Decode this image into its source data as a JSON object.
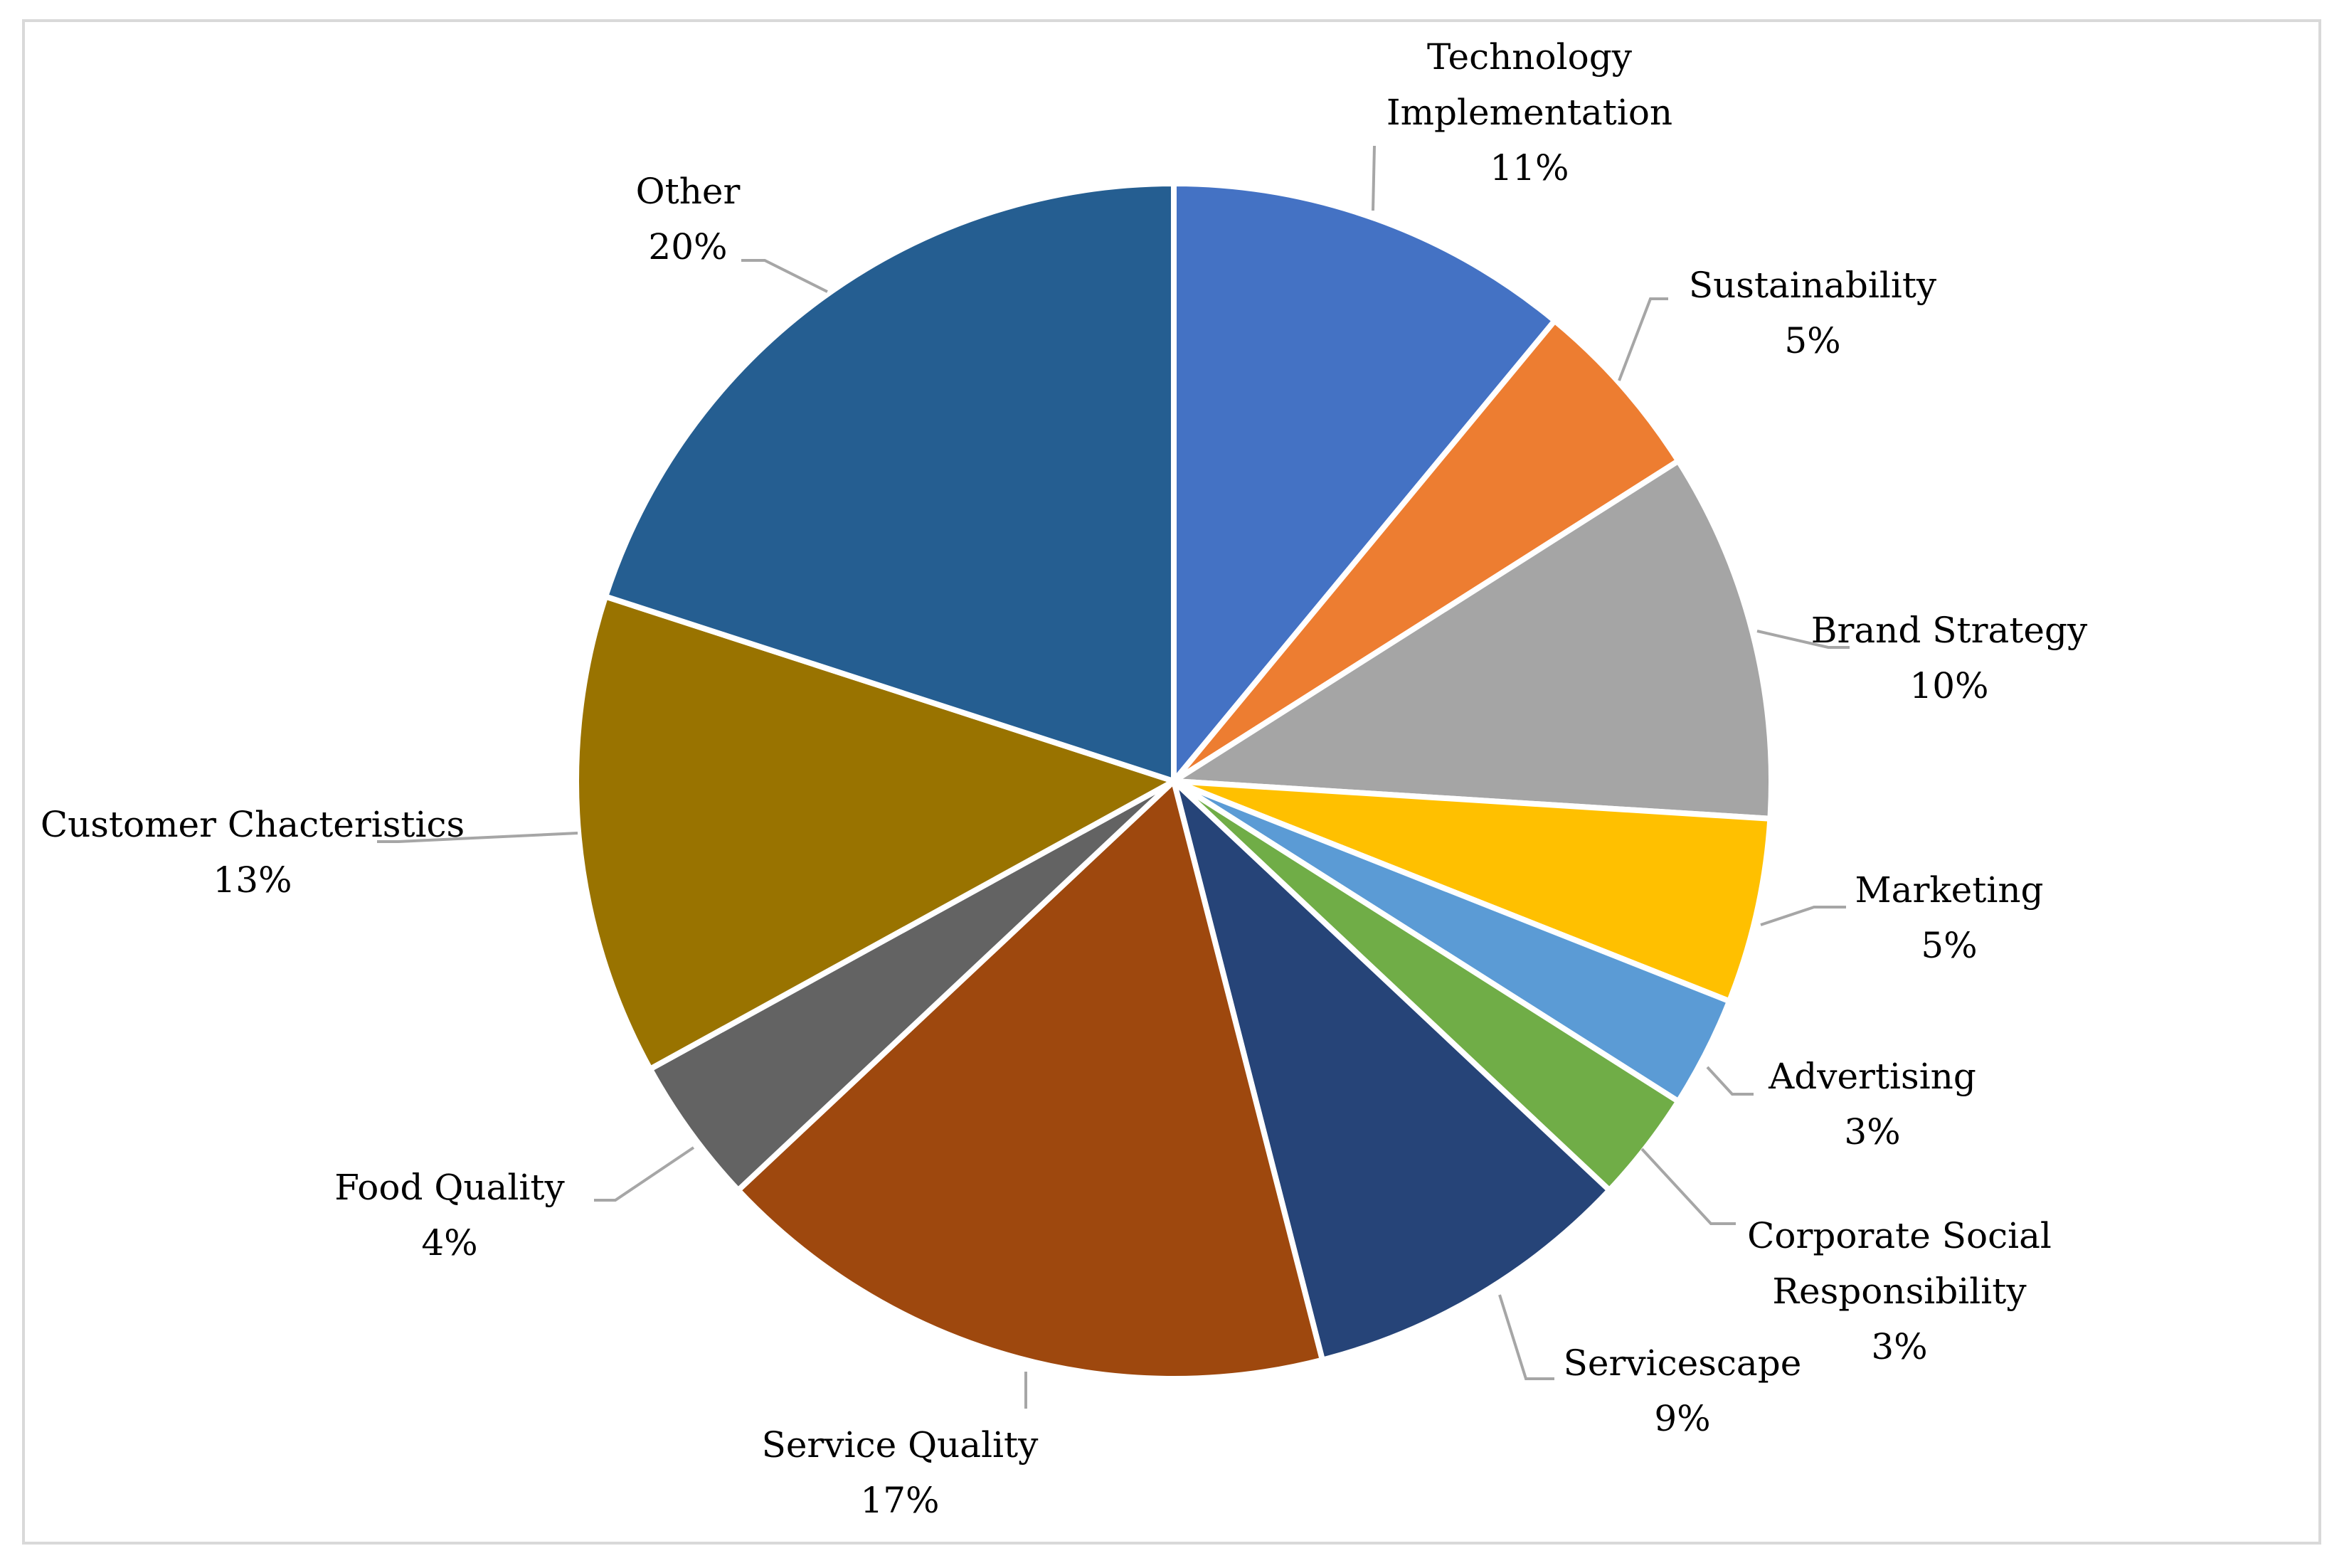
{
  "chart_data": {
    "type": "pie",
    "title": "",
    "start_angle_deg": 0,
    "direction": "clockwise",
    "slices": [
      {
        "name": "Technology Implementation",
        "label_lines": [
          "Technology",
          "Implementation"
        ],
        "value": 11,
        "pct_label": "11%",
        "color": "#4472C4"
      },
      {
        "name": "Sustainability",
        "label_lines": [
          "Sustainability"
        ],
        "value": 5,
        "pct_label": "5%",
        "color": "#ED7D31"
      },
      {
        "name": "Brand Strategy",
        "label_lines": [
          "Brand Strategy"
        ],
        "value": 10,
        "pct_label": "10%",
        "color": "#A5A5A5"
      },
      {
        "name": "Marketing",
        "label_lines": [
          "Marketing"
        ],
        "value": 5,
        "pct_label": "5%",
        "color": "#FFC000"
      },
      {
        "name": "Advertising",
        "label_lines": [
          "Advertising"
        ],
        "value": 3,
        "pct_label": "3%",
        "color": "#5B9BD5"
      },
      {
        "name": "Corporate Social Responsibility",
        "label_lines": [
          "Corporate Social",
          "Responsibility"
        ],
        "value": 3,
        "pct_label": "3%",
        "color": "#70AD47"
      },
      {
        "name": "Servicescape",
        "label_lines": [
          "Servicescape"
        ],
        "value": 9,
        "pct_label": "9%",
        "color": "#264478"
      },
      {
        "name": "Service Quality",
        "label_lines": [
          "Service Quality"
        ],
        "value": 17,
        "pct_label": "17%",
        "color": "#9E480E"
      },
      {
        "name": "Food Quality",
        "label_lines": [
          "Food Quality"
        ],
        "value": 4,
        "pct_label": "4%",
        "color": "#636363"
      },
      {
        "name": "Customer Chacteristics",
        "label_lines": [
          "Customer Chacteristics"
        ],
        "value": 13,
        "pct_label": "13%",
        "color": "#997300"
      },
      {
        "name": "Other",
        "label_lines": [
          "Other"
        ],
        "value": 20,
        "pct_label": "20%",
        "color": "#255E91"
      }
    ]
  }
}
